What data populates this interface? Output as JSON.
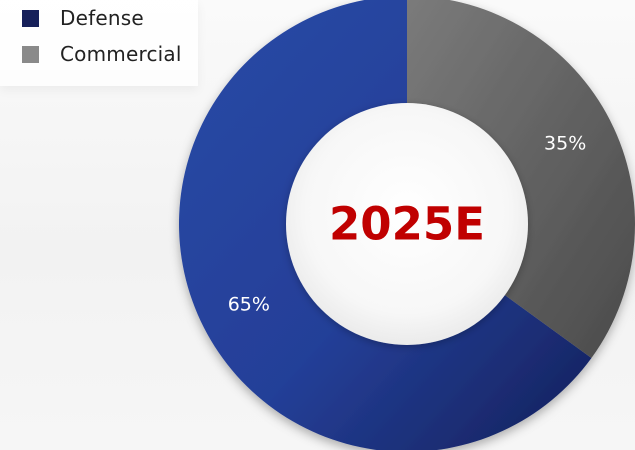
{
  "colors": {
    "defense": "#1f3a8c",
    "commercial": "#6b6b6b",
    "center_text": "#c00000"
  },
  "chart_data": {
    "type": "pie",
    "title": "2025E",
    "legend_placement": "top-left",
    "categories": [
      "Defense",
      "Commercial"
    ],
    "values": [
      65,
      35
    ],
    "data_labels": [
      "65%",
      "35%"
    ]
  }
}
